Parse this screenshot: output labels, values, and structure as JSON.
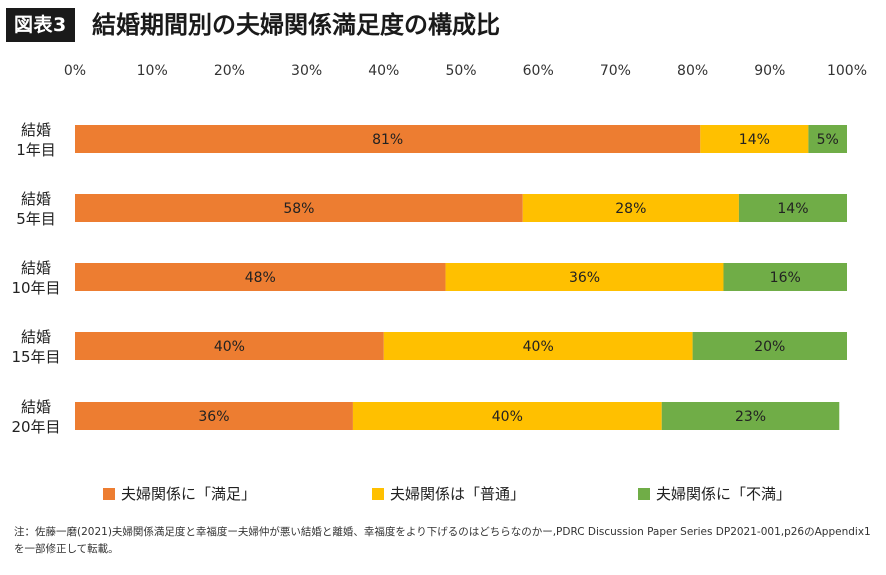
{
  "header": {
    "tag": "図表3",
    "title": "結婚期間別の夫婦関係満足度の構成比"
  },
  "chart_data": {
    "type": "bar",
    "orientation": "horizontal",
    "stacked": true,
    "xlim": [
      0,
      100
    ],
    "x_ticks": [
      "0%",
      "10%",
      "20%",
      "30%",
      "40%",
      "50%",
      "60%",
      "70%",
      "80%",
      "90%",
      "100%"
    ],
    "categories": [
      [
        "結婚",
        "1年目"
      ],
      [
        "結婚",
        "5年目"
      ],
      [
        "結婚",
        "10年目"
      ],
      [
        "結婚",
        "15年目"
      ],
      [
        "結婚",
        "20年目"
      ]
    ],
    "series": [
      {
        "name": "夫婦関係に「満足」",
        "color": "#ed7d31",
        "values": [
          81,
          58,
          48,
          40,
          36
        ]
      },
      {
        "name": "夫婦関係は「普通」",
        "color": "#ffc000",
        "values": [
          14,
          28,
          36,
          40,
          40
        ]
      },
      {
        "name": "夫婦関係に「不満」",
        "color": "#70ad47",
        "values": [
          5,
          14,
          16,
          20,
          23
        ]
      }
    ],
    "legend_position": "bottom",
    "grid": false
  },
  "note": "注：佐藤一磨(2021)夫婦関係満足度と幸福度ー夫婦仲が悪い結婚と離婚、幸福度をより下げるのはどちらなのかー,PDRC Discussion Paper Series DP2021-001,p26のAppendix1を一部修正して転載。"
}
